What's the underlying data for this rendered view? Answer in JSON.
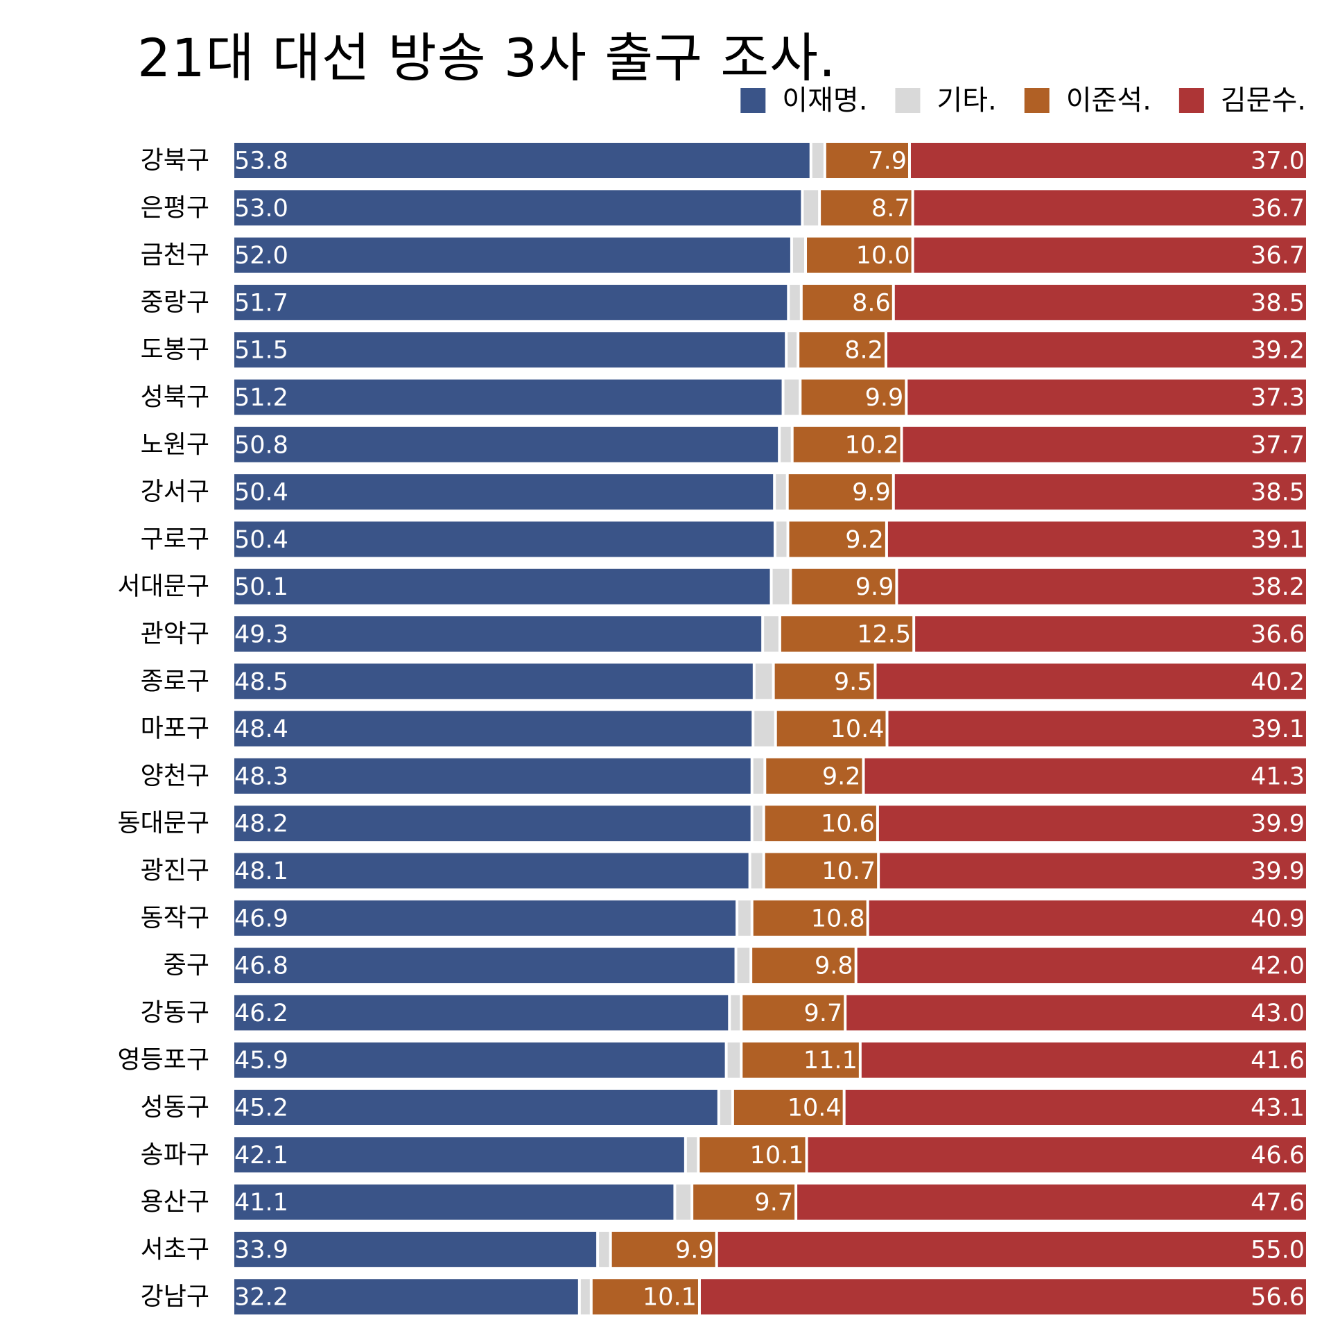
{
  "chart_data": {
    "type": "bar",
    "orientation": "horizontal",
    "stacked": true,
    "normalized": true,
    "title": "21대 대선 방송 3사 출구 조사.",
    "legend": {
      "placement": "top-right"
    },
    "grid": false,
    "xlim": [
      0,
      100
    ],
    "categories": [
      "강북구",
      "은평구",
      "금천구",
      "중랑구",
      "도봉구",
      "성북구",
      "노원구",
      "강서구",
      "구로구",
      "서대문구",
      "관악구",
      "종로구",
      "마포구",
      "양천구",
      "동대문구",
      "광진구",
      "동작구",
      "중구",
      "강동구",
      "영등포구",
      "성동구",
      "송파구",
      "용산구",
      "서초구",
      "강남구"
    ],
    "series": [
      {
        "name": "이재명.",
        "color": "#3a5488",
        "show_labels": true,
        "label_align": "start",
        "values": [
          53.8,
          53.0,
          52.0,
          51.7,
          51.5,
          51.2,
          50.8,
          50.4,
          50.4,
          50.1,
          49.3,
          48.5,
          48.4,
          48.3,
          48.2,
          48.1,
          46.9,
          46.8,
          46.2,
          45.9,
          45.2,
          42.1,
          41.1,
          33.9,
          32.2
        ]
      },
      {
        "name": "기타.",
        "color": "#d9d9d9",
        "show_labels": false,
        "values": [
          1.3,
          1.6,
          1.3,
          1.2,
          1.1,
          1.6,
          1.2,
          1.2,
          1.2,
          1.8,
          1.6,
          1.8,
          2.1,
          1.2,
          1.1,
          1.3,
          1.4,
          1.4,
          1.1,
          1.4,
          1.3,
          1.2,
          1.6,
          1.2,
          1.1
        ]
      },
      {
        "name": "이준석.",
        "color": "#b06025",
        "show_labels": true,
        "label_align": "end",
        "values": [
          7.9,
          8.7,
          10.0,
          8.6,
          8.2,
          9.9,
          10.2,
          9.9,
          9.2,
          9.9,
          12.5,
          9.5,
          10.4,
          9.2,
          10.6,
          10.7,
          10.8,
          9.8,
          9.7,
          11.1,
          10.4,
          10.1,
          9.7,
          9.9,
          10.1
        ]
      },
      {
        "name": "김문수.",
        "color": "#ad3536",
        "show_labels": true,
        "label_align": "end",
        "values": [
          37.0,
          36.7,
          36.7,
          38.5,
          39.2,
          37.3,
          37.7,
          38.5,
          39.1,
          38.2,
          36.6,
          40.2,
          39.1,
          41.3,
          39.9,
          39.9,
          40.9,
          42.0,
          43.0,
          41.6,
          43.1,
          46.6,
          47.6,
          55.0,
          56.6
        ]
      }
    ]
  }
}
